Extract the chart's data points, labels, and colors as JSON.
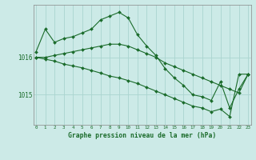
{
  "title": "Graphe pression niveau de la mer (hPa)",
  "bg_color": "#cceae7",
  "grid_color": "#aad4d0",
  "line_color": "#1a6b2a",
  "x_labels": [
    "0",
    "1",
    "2",
    "3",
    "4",
    "5",
    "6",
    "7",
    "8",
    "9",
    "10",
    "11",
    "12",
    "13",
    "14",
    "15",
    "16",
    "17",
    "18",
    "19",
    "20",
    "21",
    "22",
    "23"
  ],
  "yticks": [
    1015,
    1016
  ],
  "ylim": [
    1014.2,
    1017.4
  ],
  "xlim": [
    -0.3,
    23.3
  ],
  "series": [
    [
      1016.15,
      1016.75,
      1016.4,
      1016.5,
      1016.55,
      1016.65,
      1016.75,
      1017.0,
      1017.1,
      1017.2,
      1017.05,
      1016.6,
      1016.3,
      1016.05,
      1015.7,
      1015.45,
      1015.25,
      1015.0,
      1014.95,
      1014.85,
      1015.35,
      1014.65,
      1015.15,
      1015.55
    ],
    [
      1016.0,
      1016.0,
      1016.05,
      1016.1,
      1016.15,
      1016.2,
      1016.25,
      1016.3,
      1016.35,
      1016.35,
      1016.3,
      1016.2,
      1016.1,
      1016.0,
      1015.85,
      1015.75,
      1015.65,
      1015.55,
      1015.45,
      1015.35,
      1015.25,
      1015.15,
      1015.05,
      1015.55
    ],
    [
      1016.0,
      1015.95,
      1015.9,
      1015.82,
      1015.77,
      1015.72,
      1015.65,
      1015.58,
      1015.5,
      1015.45,
      1015.38,
      1015.3,
      1015.2,
      1015.1,
      1015.0,
      1014.9,
      1014.8,
      1014.7,
      1014.65,
      1014.55,
      1014.62,
      1014.42,
      1015.55,
      1015.55
    ]
  ]
}
